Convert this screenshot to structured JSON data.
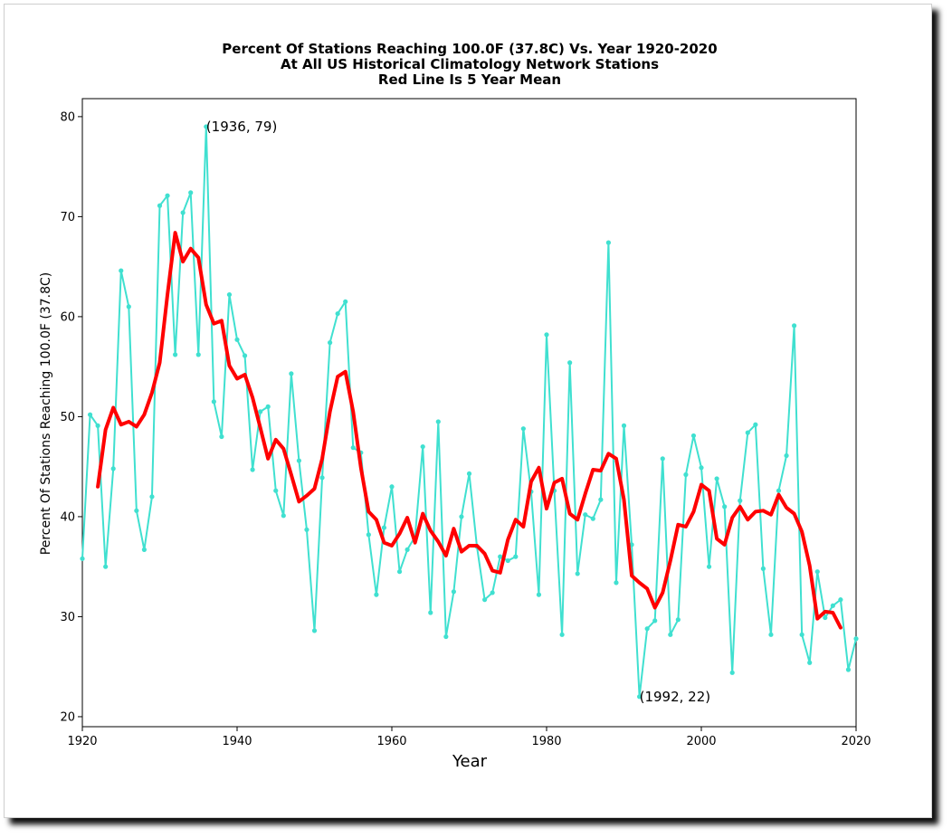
{
  "chart_data": {
    "type": "line",
    "title_lines": [
      "Percent Of Stations Reaching 100.0F (37.8C) Vs. Year 1920-2020",
      "At All US Historical Climatology Network Stations",
      "Red Line Is 5 Year Mean"
    ],
    "xlabel": "Year",
    "ylabel": "Percent Of Stations Reaching 100.0F (37.8C)",
    "xlim": [
      1920,
      2020
    ],
    "ylim": [
      19,
      81.8
    ],
    "xticks": [
      1920,
      1940,
      1960,
      1980,
      2000,
      2020
    ],
    "yticks": [
      20,
      30,
      40,
      50,
      60,
      70,
      80
    ],
    "grid": false,
    "legend": "none",
    "colors": {
      "annual": "#40e0d0",
      "mean": "#ff0000"
    },
    "annotations": [
      {
        "text": "(1936, 79)",
        "x": 1936,
        "y": 79
      },
      {
        "text": "(1992, 22)",
        "x": 1992,
        "y": 22
      }
    ],
    "series": [
      {
        "x": [
          1920,
          1921,
          1922,
          1923,
          1924,
          1925,
          1926,
          1927,
          1928,
          1929,
          1930,
          1931,
          1932,
          1933,
          1934,
          1935,
          1936,
          1937,
          1938,
          1939,
          1940,
          1941,
          1942,
          1943,
          1944,
          1945,
          1946,
          1947,
          1948,
          1949,
          1950,
          1951,
          1952,
          1953,
          1954,
          1955,
          1956,
          1957,
          1958,
          1959,
          1960,
          1961,
          1962,
          1963,
          1964,
          1965,
          1966,
          1967,
          1968,
          1969,
          1970,
          1971,
          1972,
          1973,
          1974,
          1975,
          1976,
          1977,
          1978,
          1979,
          1980,
          1981,
          1982,
          1983,
          1984,
          1985,
          1986,
          1987,
          1988,
          1989,
          1990,
          1991,
          1992,
          1993,
          1994,
          1995,
          1996,
          1997,
          1998,
          1999,
          2000,
          2001,
          2002,
          2003,
          2004,
          2005,
          2006,
          2007,
          2008,
          2009,
          2010,
          2011,
          2012,
          2013,
          2014,
          2015,
          2016,
          2017,
          2018,
          2019,
          2020
        ],
        "values": [
          35.8,
          50.2,
          49.1,
          35.0,
          44.8,
          64.6,
          61.0,
          40.6,
          36.7,
          42.0,
          71.1,
          72.1,
          56.2,
          70.4,
          72.4,
          56.2,
          79.0,
          51.5,
          48.0,
          62.2,
          57.7,
          56.1,
          44.7,
          50.5,
          51.0,
          42.6,
          40.1,
          54.3,
          45.6,
          38.7,
          28.6,
          43.9,
          57.4,
          60.3,
          61.5,
          46.9,
          46.4,
          38.2,
          32.2,
          38.9,
          43.0,
          34.5,
          36.7,
          38.0,
          47.0,
          30.4,
          49.5,
          28.0,
          32.5,
          40.0,
          44.3,
          37.0,
          31.7,
          32.4,
          36.0,
          35.6,
          36.0,
          48.8,
          42.5,
          32.2,
          58.2,
          42.6,
          28.2,
          55.4,
          34.3,
          40.2,
          39.8,
          41.7,
          67.4,
          33.4,
          49.1,
          37.2,
          22.0,
          28.8,
          29.6,
          45.8,
          28.2,
          29.7,
          44.2,
          48.1,
          44.9,
          35.0,
          43.8,
          41.0,
          24.4,
          41.6,
          48.4,
          49.2,
          34.8,
          28.2,
          42.6,
          46.1,
          59.1,
          28.2,
          25.4,
          34.5,
          29.9,
          31.1,
          31.7,
          24.7,
          27.8
        ]
      },
      {
        "x": [
          1922,
          1923,
          1924,
          1925,
          1926,
          1927,
          1928,
          1929,
          1930,
          1931,
          1932,
          1933,
          1934,
          1935,
          1936,
          1937,
          1938,
          1939,
          1940,
          1941,
          1942,
          1943,
          1944,
          1945,
          1946,
          1947,
          1948,
          1949,
          1950,
          1951,
          1952,
          1953,
          1954,
          1955,
          1956,
          1957,
          1958,
          1959,
          1960,
          1961,
          1962,
          1963,
          1964,
          1965,
          1966,
          1967,
          1968,
          1969,
          1970,
          1971,
          1972,
          1973,
          1974,
          1975,
          1976,
          1977,
          1978,
          1979,
          1980,
          1981,
          1982,
          1983,
          1984,
          1985,
          1986,
          1987,
          1988,
          1989,
          1990,
          1991,
          1992,
          1993,
          1994,
          1995,
          1996,
          1997,
          1998,
          1999,
          2000,
          2001,
          2002,
          2003,
          2004,
          2005,
          2006,
          2007,
          2008,
          2009,
          2010,
          2011,
          2012,
          2013,
          2014,
          2015,
          2016,
          2017,
          2018
        ],
        "values": [
          43.0,
          48.7,
          50.9,
          49.2,
          49.5,
          49.0,
          50.2,
          52.4,
          55.4,
          62.2,
          68.4,
          65.5,
          66.8,
          65.9,
          61.2,
          59.3,
          59.6,
          55.1,
          53.8,
          54.2,
          51.9,
          48.9,
          45.8,
          47.7,
          46.8,
          44.2,
          41.5,
          42.1,
          42.8,
          45.8,
          50.5,
          54.0,
          54.5,
          50.5,
          44.9,
          40.5,
          39.7,
          37.4,
          37.1,
          38.3,
          39.9,
          37.4,
          40.3,
          38.6,
          37.5,
          36.1,
          38.8,
          36.5,
          37.1,
          37.1,
          36.3,
          34.6,
          34.4,
          37.7,
          39.7,
          39.0,
          43.5,
          44.9,
          40.8,
          43.4,
          43.8,
          40.3,
          39.7,
          42.3,
          44.7,
          44.6,
          46.3,
          45.8,
          41.7,
          34.1,
          33.4,
          32.8,
          30.9,
          32.4,
          35.6,
          39.2,
          39.0,
          40.5,
          43.2,
          42.6,
          37.8,
          37.2,
          39.9,
          41.0,
          39.7,
          40.5,
          40.6,
          40.2,
          42.2,
          40.9,
          40.3,
          38.5,
          35.1,
          29.8,
          30.5,
          30.4,
          28.9
        ]
      }
    ]
  }
}
